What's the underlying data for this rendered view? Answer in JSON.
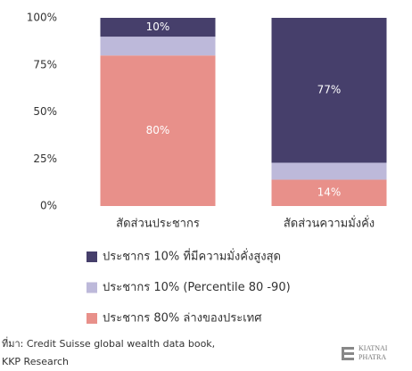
{
  "chart_data": {
    "type": "stacked_bar",
    "categories": [
      "สัดส่วนประชากร",
      "สัดส่วนความมั่งคั่ง"
    ],
    "series": [
      {
        "name": "ประชากร 10% ที่มีความมั่งคั่งสูงสุด",
        "color": "#463f6b",
        "values": [
          10,
          77
        ],
        "value_labels": [
          "10%",
          "77%"
        ]
      },
      {
        "name": "ประชากร 10% (Percentile 80 -90)",
        "color": "#bdb9da",
        "values": [
          10,
          9
        ]
      },
      {
        "name": "ประชากร 80% ล่างของประเทศ",
        "color": "#e8908a",
        "values": [
          80,
          14
        ],
        "value_labels": [
          "80%",
          "14%"
        ]
      }
    ],
    "ylim": [
      0,
      100
    ],
    "yticks": [
      {
        "value": 0,
        "label": "0%"
      },
      {
        "value": 25,
        "label": "25%"
      },
      {
        "value": 50,
        "label": "50%"
      },
      {
        "value": 75,
        "label": "75%"
      },
      {
        "value": 100,
        "label": "100%"
      }
    ],
    "grid": false,
    "source": [
      "ที่มา: Credit Suisse global wealth data book,",
      "KKP Research"
    ],
    "logo": [
      "KIATNAI",
      "PHATRA"
    ]
  }
}
